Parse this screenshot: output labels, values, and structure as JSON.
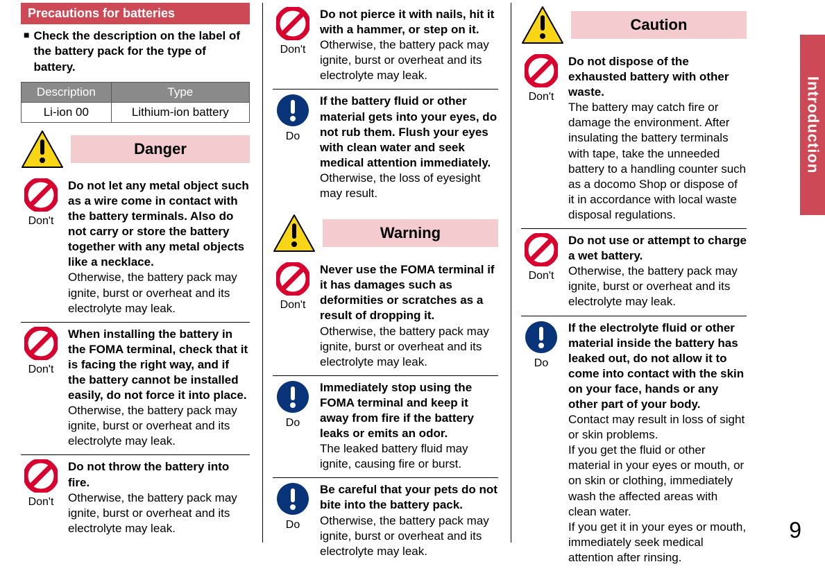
{
  "sideTab": "Introduction",
  "pageNumber": "9",
  "sectionHeader": "Precautions for batteries",
  "checkNote": "Check the description on the label of the battery pack for the type of battery.",
  "table": {
    "headers": [
      "Description",
      "Type"
    ],
    "row": [
      "Li-ion 00",
      "Lithium-ion battery"
    ]
  },
  "colors": {
    "headerBg": "#cd4956",
    "levelBg": "#f4cccf",
    "yellow": "#f9d615",
    "blue": "#0a347a",
    "red": "#d8002e"
  },
  "levels": {
    "danger": "Danger",
    "warning": "Warning",
    "caution": "Caution"
  },
  "iconLabels": {
    "dont": "Don't",
    "do": "Do"
  },
  "col1": {
    "dangerItems": [
      {
        "icon": "dont",
        "bold": "Do not let any metal object such as a wire come in contact with the battery terminals. Also do not carry or store the battery together with any metal objects like a necklace.",
        "body": "Otherwise, the battery pack may ignite, burst or overheat and its electrolyte may leak."
      },
      {
        "icon": "dont",
        "bold": "When installing the battery in the FOMA terminal, check that it is facing the right way, and if the battery cannot be installed easily, do not force it into place.",
        "body": "Otherwise, the battery pack may ignite, burst or overheat and its electrolyte may leak."
      },
      {
        "icon": "dont",
        "bold": "Do not throw the battery into fire.",
        "body": "Otherwise, the battery pack may ignite, burst or overheat and its electrolyte may leak."
      }
    ]
  },
  "col2": {
    "topItems": [
      {
        "icon": "dont",
        "bold": "Do not pierce it with nails, hit it with a hammer, or step on it.",
        "body": "Otherwise, the battery pack may ignite, burst or overheat and its electrolyte may leak."
      },
      {
        "icon": "do",
        "bold": "If the battery fluid or other material gets into your eyes, do not rub them. Flush your eyes with clean water and seek medical attention immediately.",
        "body": "Otherwise, the loss of eyesight may result."
      }
    ],
    "warningItems": [
      {
        "icon": "dont",
        "bold": "Never use the FOMA terminal if it has damages such as deformities or scratches as a result of dropping it.",
        "body": "Otherwise, the battery pack may ignite, burst or overheat and its electrolyte may leak."
      },
      {
        "icon": "do",
        "bold": "Immediately stop using the FOMA terminal and keep it away from fire if the battery leaks or emits an odor.",
        "body": "The leaked battery fluid may ignite, causing fire or burst."
      },
      {
        "icon": "do",
        "bold": "Be careful that your pets do not bite into the battery pack.",
        "body": "Otherwise, the battery pack may ignite, burst or overheat and its electrolyte may leak."
      }
    ]
  },
  "col3": {
    "cautionItems": [
      {
        "icon": "dont",
        "bold": "Do not dispose of the exhausted battery with other waste.",
        "body": "The battery may catch fire or damage the environment. After insulating the battery terminals with tape, take the unneeded battery to a handling counter such as a docomo Shop or dispose of it in accordance with local waste disposal regulations."
      },
      {
        "icon": "dont",
        "bold": "Do not use or attempt to charge a wet battery.",
        "body": "Otherwise, the battery pack may ignite, burst or overheat and its electrolyte may leak."
      },
      {
        "icon": "do",
        "bold": "If the electrolyte fluid or other material inside the battery has leaked out, do not allow it to come into contact with the skin on your face, hands or any other part of your body.",
        "body": "Contact may result in loss of sight or skin problems.\nIf you get the fluid or other material in your eyes or mouth, or on skin or clothing, immediately wash the affected areas with clean water.\nIf you get it in your eyes or mouth, immediately seek medical attention after rinsing."
      }
    ]
  }
}
